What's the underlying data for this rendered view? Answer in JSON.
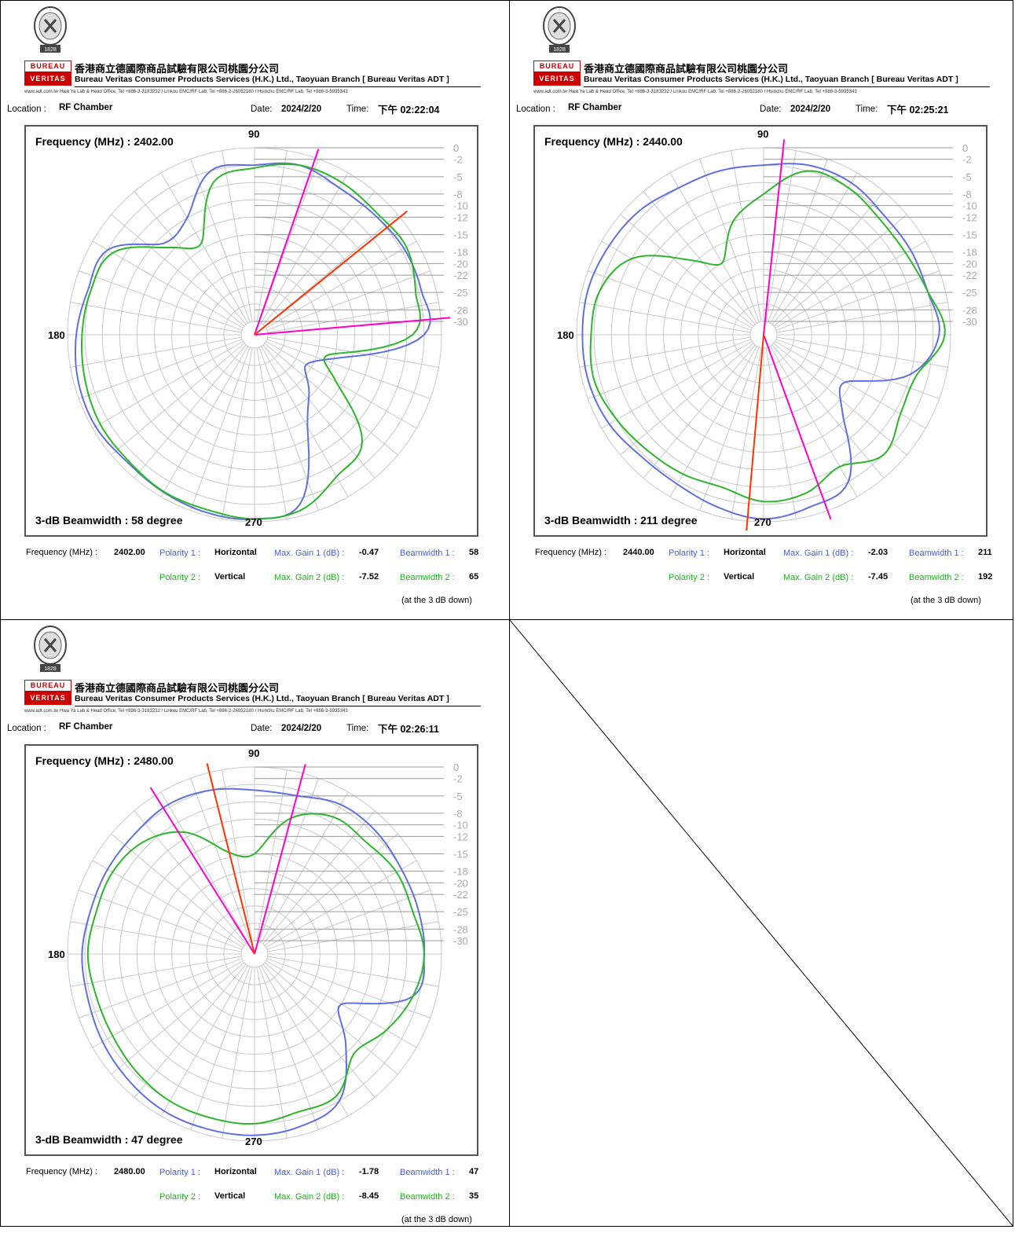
{
  "header": {
    "company_cn": "香港商立德國際商品試驗有限公司桃園分公司",
    "company_en": "Bureau Veritas Consumer Products Services (H.K.) Ltd., Taoyuan Branch [ Bureau Veritas ADT ]",
    "contact": "www.adt.com.tw   Hwa Ya Lab & Head Office,  Tel +886-3-3183232  /  Linkou EMC/RF Lab,  Tel +886-2-26052180  /  Hsinchu EMC/RF Lab,  Tel +886-3-5935343",
    "logo_top": "BUREAU",
    "logo_bottom": "VERITAS",
    "seal_year": "1828"
  },
  "labels": {
    "location": "Location :",
    "date": "Date:",
    "time": "Time:",
    "freq_plot": "Frequency (MHz) :",
    "beamwidth_prefix": "3-dB Beamwidth :",
    "degree": "degree",
    "freq_summary": "Frequency (MHz) :",
    "polarity1": "Polarity 1 :",
    "polarity2": "Polarity 2 :",
    "maxgain1": "Max. Gain 1 (dB) :",
    "maxgain2": "Max. Gain 2 (dB) :",
    "bw1": "Beamwidth 1 :",
    "bw2": "Beamwidth 2 :",
    "note": "(at the  3  dB down)"
  },
  "chart_data": [
    {
      "type": "polar",
      "location": "RF Chamber",
      "date": "2024/2/20",
      "time": "下午 02:22:04",
      "frequency": "2402.00",
      "beamwidth_3db": "58",
      "angle_labels": [
        "90",
        "180",
        "270"
      ],
      "radial_ticks": [
        "0",
        "-2",
        "-5",
        "-8",
        "-10",
        "-12",
        "-15",
        "-18",
        "-20",
        "-22",
        "-25",
        "-28",
        "-30"
      ],
      "polarity1": "Horizontal",
      "max_gain1": "-0.47",
      "beamwidth1": "58",
      "polarity2": "Vertical",
      "max_gain2": "-7.52",
      "beamwidth2": "65",
      "series": [
        {
          "name": "Horizontal",
          "color": "#6070e0",
          "angles": [
            0,
            15,
            30,
            45,
            60,
            75,
            90,
            105,
            120,
            135,
            150,
            165,
            180,
            195,
            210,
            225,
            240,
            255,
            270,
            285,
            300,
            315,
            330,
            345
          ],
          "values": [
            -1.5,
            -0.8,
            -0.6,
            -1.2,
            -0.9,
            -0.5,
            -0.5,
            -2,
            -14,
            -19,
            -22,
            -17,
            -3,
            -2.5,
            -2.5,
            -3,
            -3,
            -2,
            -3,
            -3,
            -9,
            -10,
            -3,
            -2.5
          ]
        },
        {
          "name": "Vertical",
          "color": "#2db52d",
          "angles": [
            0,
            15,
            30,
            45,
            60,
            75,
            90,
            105,
            120,
            135,
            150,
            165,
            180,
            195,
            210,
            225,
            240,
            255,
            270,
            285,
            300,
            315,
            330,
            345
          ],
          "values": [
            -2.5,
            -2,
            -1.5,
            -1.5,
            -1,
            -1,
            -0.5,
            -1,
            -4,
            -6,
            -16,
            -19,
            -5,
            -3.5,
            -2,
            -2.5,
            -2,
            -2,
            -3.5,
            -5,
            -14,
            -11,
            -4,
            -3
          ]
        }
      ],
      "markers": [
        {
          "color": "#ff00cc",
          "angles": [
            185,
            251
          ]
        },
        {
          "color": "#ff3300",
          "angles": [
            219
          ]
        }
      ]
    },
    {
      "type": "polar",
      "location": "RF Chamber",
      "date": "2024/2/20",
      "time": "下午 02:25:21",
      "frequency": "2440.00",
      "beamwidth_3db": "211",
      "angle_labels": [
        "90",
        "180",
        "270"
      ],
      "radial_ticks": [
        "0",
        "-2",
        "-5",
        "-8",
        "-10",
        "-12",
        "-15",
        "-18",
        "-20",
        "-22",
        "-25",
        "-28",
        "-30"
      ],
      "polarity1": "Horizontal",
      "max_gain1": "-2.03",
      "beamwidth1": "211",
      "polarity2": "Vertical",
      "max_gain2": "-7.45",
      "beamwidth2": "192",
      "series": [
        {
          "name": "Horizontal",
          "color": "#6070e0",
          "angles": [
            0,
            15,
            30,
            45,
            60,
            75,
            90,
            105,
            120,
            135,
            150,
            165,
            180,
            195,
            210,
            225,
            240,
            255,
            270,
            285,
            300,
            315,
            330,
            345
          ],
          "values": [
            -1,
            -1,
            -1.5,
            -2.5,
            -2.5,
            -1.5,
            -0.5,
            -1.5,
            -3,
            -13,
            -16,
            -6,
            -2,
            -3,
            -3,
            -3,
            -2,
            -2,
            -3,
            -3,
            -3,
            -2,
            -1.5,
            -1
          ]
        },
        {
          "name": "Vertical",
          "color": "#2db52d",
          "angles": [
            0,
            15,
            30,
            45,
            60,
            75,
            90,
            105,
            120,
            135,
            150,
            165,
            180,
            195,
            210,
            225,
            240,
            255,
            270,
            285,
            300,
            315,
            330,
            345
          ],
          "values": [
            -2.5,
            -2,
            -3,
            -4,
            -4.5,
            -5,
            -3.5,
            -4,
            -6,
            -3,
            -5,
            -5,
            -1,
            -3,
            -4,
            -4,
            -3,
            -3,
            -8,
            -12,
            -18,
            -14,
            -6,
            -3
          ]
        }
      ],
      "markers": [
        {
          "color": "#ff00cc",
          "angles": [
            110,
            264
          ]
        },
        {
          "color": "#ff3300",
          "angles": [
            85
          ]
        }
      ]
    },
    {
      "type": "polar",
      "location": "RF Chamber",
      "date": "2024/2/20",
      "time": "下午 02:26:11",
      "frequency": "2480.00",
      "beamwidth_3db": "47",
      "angle_labels": [
        "90",
        "180",
        "270"
      ],
      "radial_ticks": [
        "0",
        "-2",
        "-5",
        "-8",
        "-10",
        "-12",
        "-15",
        "-18",
        "-20",
        "-22",
        "-25",
        "-28",
        "-30"
      ],
      "polarity1": "Horizontal",
      "max_gain1": "-1.78",
      "beamwidth1": "47",
      "polarity2": "Vertical",
      "max_gain2": "-8.45",
      "beamwidth2": "35",
      "series": [
        {
          "name": "Horizontal",
          "color": "#6070e0",
          "angles": [
            0,
            15,
            30,
            45,
            60,
            75,
            90,
            105,
            120,
            135,
            150,
            165,
            180,
            195,
            210,
            225,
            240,
            255,
            270,
            285,
            300,
            315,
            330,
            345
          ],
          "values": [
            -2.5,
            -2.5,
            -2,
            -1.5,
            -1,
            -1,
            -1,
            -1.5,
            -3,
            -10,
            -15,
            -4,
            -3,
            -3,
            -3,
            -2.5,
            -2.5,
            -4,
            -4,
            -3,
            -2.5,
            -3,
            -3,
            -3
          ]
        },
        {
          "name": "Vertical",
          "color": "#2db52d",
          "angles": [
            0,
            15,
            30,
            45,
            60,
            75,
            90,
            105,
            120,
            135,
            150,
            165,
            180,
            195,
            210,
            225,
            240,
            255,
            270,
            285,
            300,
            315,
            330,
            345
          ],
          "values": [
            -3.5,
            -4,
            -4,
            -3.5,
            -3,
            -3,
            -3,
            -4,
            -4,
            -8,
            -6,
            -4,
            -3,
            -4,
            -4,
            -5,
            -5,
            -8,
            -15,
            -14,
            -8,
            -5,
            -4,
            -4
          ]
        }
      ],
      "markers": [
        {
          "color": "#ff00cc",
          "angles": [
            255,
            302
          ]
        },
        {
          "color": "#ff3300",
          "angles": [
            284
          ]
        }
      ]
    }
  ]
}
